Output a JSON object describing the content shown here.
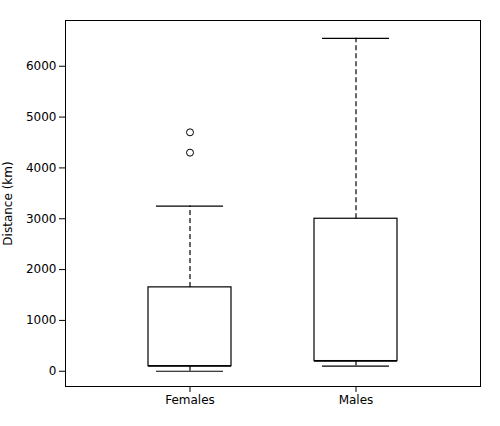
{
  "chart_data": {
    "type": "box",
    "categories": [
      "Females",
      "Males"
    ],
    "q1": [
      100,
      200
    ],
    "median": [
      100,
      200
    ],
    "q3": [
      1650,
      3000
    ],
    "whisker_low": [
      0,
      100
    ],
    "whisker_high": [
      3250,
      6550
    ],
    "outliers": [
      [
        4300,
        4700
      ],
      []
    ],
    "ylabel": "Distance (km)",
    "ylim": [
      -300,
      6900
    ],
    "yticks": [
      0,
      1000,
      2000,
      3000,
      4000,
      5000,
      6000
    ],
    "color": "black"
  }
}
